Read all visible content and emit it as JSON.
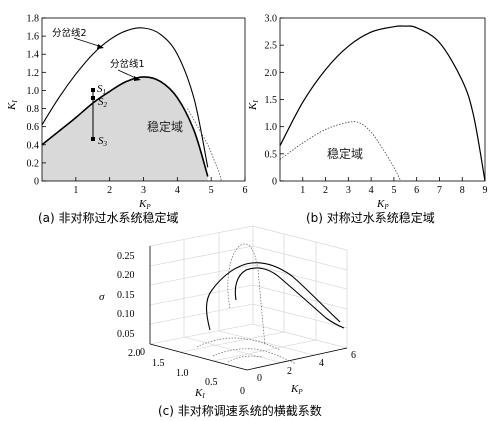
{
  "figure_a": {
    "caption": "(a) 非对称过水系统稳定域",
    "xlabel": "K",
    "xlabel_sub": "P",
    "ylabel": "K",
    "ylabel_sub": "I",
    "xticks": [
      "1",
      "2",
      "3",
      "4",
      "5",
      "6"
    ],
    "yticks": [
      "0",
      "0.2",
      "0.4",
      "0.6",
      "0.8",
      "1.0",
      "1.2",
      "1.4",
      "1.6",
      "1.8"
    ],
    "label_line2": "分岔线2",
    "label_line1": "分岔线1",
    "region_label": "稳定域",
    "s1": "S",
    "s1_sub": "1",
    "s2": "S",
    "s2_sub": "2",
    "s3": "S",
    "s3_sub": "3"
  },
  "figure_b": {
    "caption": "(b) 对称过水系统稳定域",
    "xlabel": "K",
    "xlabel_sub": "P",
    "ylabel": "K",
    "ylabel_sub": "I",
    "xticks": [
      "1",
      "2",
      "3",
      "4",
      "5",
      "6",
      "7",
      "8",
      "9"
    ],
    "yticks": [
      "0",
      "0.5",
      "1.0",
      "1.5",
      "2.0",
      "2.5",
      "3.0"
    ],
    "region_label": "稳定域"
  },
  "figure_c": {
    "caption": "(c) 非对称调速系统的横截系数",
    "zlabel": "σ",
    "zticks": [
      "0",
      "0.05",
      "0.10",
      "0.15",
      "0.20",
      "0.25"
    ],
    "ki_ticks": [
      "2.0",
      "1.5",
      "1.0",
      "0.5",
      "0"
    ],
    "ki_label": "K",
    "ki_sub": "I",
    "kp_ticks": [
      "0",
      "2",
      "4",
      "6"
    ],
    "kp_label": "K",
    "kp_sub": "P"
  },
  "chart_data": [
    {
      "type": "line",
      "id": "a",
      "xlabel": "KP",
      "ylabel": "KI",
      "xlim": [
        0,
        6
      ],
      "ylim": [
        0,
        1.8
      ],
      "series": [
        {
          "name": "分岔线2",
          "style": "solid",
          "x": [
            0,
            0.5,
            1,
            1.5,
            2,
            2.5,
            3,
            3.5,
            4,
            4.5,
            4.9
          ],
          "y": [
            0.62,
            0.92,
            1.18,
            1.4,
            1.56,
            1.66,
            1.69,
            1.62,
            1.4,
            0.9,
            0.15
          ]
        },
        {
          "name": "分岔线1",
          "style": "solid",
          "x": [
            0,
            0.5,
            1,
            1.5,
            2,
            2.5,
            3,
            3.5,
            4,
            4.5,
            4.9
          ],
          "y": [
            0.4,
            0.55,
            0.7,
            0.86,
            0.99,
            1.1,
            1.15,
            1.1,
            0.92,
            0.55,
            0.05
          ]
        },
        {
          "style": "dotted",
          "x": [
            4.3,
            4.6,
            4.9,
            5.1,
            5.25,
            5.3
          ],
          "y": [
            0.8,
            0.6,
            0.4,
            0.22,
            0.08,
            0.0
          ]
        }
      ],
      "points": [
        {
          "name": "S1",
          "x": 1.5,
          "y": 1.0
        },
        {
          "name": "S2",
          "x": 1.5,
          "y": 0.9
        },
        {
          "name": "S3",
          "x": 1.5,
          "y": 0.45
        }
      ]
    },
    {
      "type": "line",
      "id": "b",
      "xlabel": "KP",
      "ylabel": "KI",
      "xlim": [
        0,
        9
      ],
      "ylim": [
        0,
        3.0
      ],
      "series": [
        {
          "style": "solid",
          "x": [
            0,
            1,
            2,
            3,
            4,
            5,
            5.5,
            6,
            7,
            8,
            8.5,
            9
          ],
          "y": [
            0.65,
            1.45,
            2.05,
            2.48,
            2.74,
            2.84,
            2.85,
            2.82,
            2.55,
            1.85,
            1.2,
            0.0
          ]
        },
        {
          "style": "dotted",
          "x": [
            0,
            0.5,
            1,
            2,
            3,
            3.5,
            4,
            4.5,
            5,
            5.3
          ],
          "y": [
            0.4,
            0.55,
            0.7,
            0.95,
            1.08,
            1.07,
            0.9,
            0.6,
            0.25,
            0.0
          ]
        }
      ]
    },
    {
      "type": "line",
      "id": "c",
      "zlabel": "σ",
      "zlim": [
        0,
        0.25
      ],
      "ki_range": [
        0,
        2.0
      ],
      "kp_range": [
        0,
        6
      ]
    }
  ]
}
